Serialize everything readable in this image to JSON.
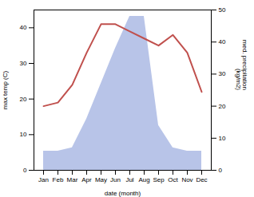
{
  "chart_data": {
    "type": "line",
    "categories": [
      "Jan",
      "Feb",
      "Mar",
      "Apr",
      "May",
      "Jun",
      "Jul",
      "Aug",
      "Sep",
      "Oct",
      "Nov",
      "Dec"
    ],
    "xlabel": "date (month)",
    "ylabel": "max temp (C)",
    "y2label": "med. precipitation\n(kg/m2)",
    "ylim": [
      0,
      45
    ],
    "yticks": [
      0,
      10,
      20,
      30,
      40
    ],
    "y2lim": [
      0,
      50
    ],
    "y2ticks": [
      0,
      10,
      20,
      30,
      40,
      50
    ],
    "series": [
      {
        "type": "area",
        "axis": "y2",
        "color": "#b8c4e8",
        "values": [
          6,
          6,
          7,
          16,
          27,
          38,
          48,
          48,
          14,
          7,
          6,
          6
        ]
      },
      {
        "type": "line",
        "color": "#c0504d",
        "values": [
          18,
          19,
          24,
          33,
          41,
          41,
          39,
          37,
          35,
          38,
          33,
          22
        ]
      }
    ]
  }
}
